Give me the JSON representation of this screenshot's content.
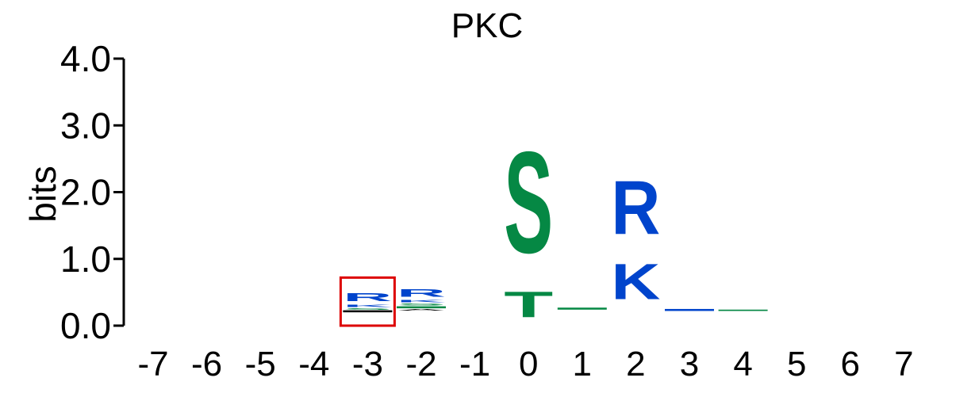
{
  "chart_data": {
    "type": "sequence-logo",
    "title": "PKC",
    "ylabel": "bits",
    "xlabel": "",
    "ylim": [
      0,
      4
    ],
    "y_ticks": [
      "0.0",
      "1.0",
      "2.0",
      "3.0",
      "4.0"
    ],
    "positions": [
      "-7",
      "-6",
      "-5",
      "-4",
      "-3",
      "-2",
      "-1",
      "0",
      "1",
      "2",
      "3",
      "4",
      "5",
      "6",
      "7"
    ],
    "colors": {
      "basic": "#0044cc",
      "polar": "#058844",
      "hydrophobic": "#000000",
      "highlight": "#dd0000"
    },
    "highlighted_position": "-3",
    "columns": [
      {
        "position": "-7",
        "letters": []
      },
      {
        "position": "-6",
        "letters": []
      },
      {
        "position": "-5",
        "letters": []
      },
      {
        "position": "-4",
        "letters": []
      },
      {
        "position": "-3",
        "letters": [
          {
            "char": "R",
            "from": 0.33,
            "to": 0.52,
            "color": "#0044cc"
          },
          {
            "char": "K",
            "from": 0.27,
            "to": 0.33,
            "color": "#0044cc"
          },
          {
            "char": "S",
            "from": 0.23,
            "to": 0.27,
            "color": "#058844"
          },
          {
            "char": "L",
            "from": 0.2,
            "to": 0.23,
            "color": "#000000"
          }
        ]
      },
      {
        "position": "-2",
        "letters": [
          {
            "char": "R",
            "from": 0.4,
            "to": 0.58,
            "color": "#0044cc"
          },
          {
            "char": "K",
            "from": 0.34,
            "to": 0.4,
            "color": "#0044cc"
          },
          {
            "char": "S",
            "from": 0.29,
            "to": 0.34,
            "color": "#058844"
          },
          {
            "char": "G",
            "from": 0.26,
            "to": 0.29,
            "color": "#058844"
          },
          {
            "char": "A",
            "from": 0.22,
            "to": 0.26,
            "color": "#000000"
          }
        ]
      },
      {
        "position": "-1",
        "letters": []
      },
      {
        "position": "0",
        "letters": [
          {
            "char": "S",
            "from": 0.62,
            "to": 3.05,
            "color": "#058844"
          },
          {
            "char": "T",
            "from": 0.0,
            "to": 0.62,
            "color": "#058844"
          }
        ]
      },
      {
        "position": "1",
        "letters": [
          {
            "char": "-",
            "from": 0.24,
            "to": 0.27,
            "color": "#058844"
          }
        ]
      },
      {
        "position": "2",
        "letters": [
          {
            "char": "R",
            "from": 1.12,
            "to": 2.4,
            "color": "#0044cc"
          },
          {
            "char": "K",
            "from": 0.23,
            "to": 1.08,
            "color": "#0044cc"
          }
        ]
      },
      {
        "position": "3",
        "letters": [
          {
            "char": "-",
            "from": 0.22,
            "to": 0.25,
            "color": "#0044cc"
          }
        ]
      },
      {
        "position": "4",
        "letters": [
          {
            "char": "-",
            "from": 0.22,
            "to": 0.24,
            "color": "#058844"
          }
        ]
      },
      {
        "position": "5",
        "letters": []
      },
      {
        "position": "6",
        "letters": []
      },
      {
        "position": "7",
        "letters": []
      }
    ]
  }
}
